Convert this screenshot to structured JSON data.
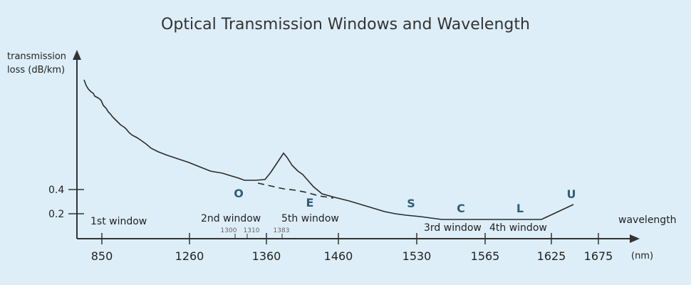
{
  "title": "Optical Transmission Windows and Wavelength",
  "y_axis": {
    "label_line1": "transmission",
    "label_line2": "loss (dB/km)",
    "ticks": [
      "0.4",
      "0.2"
    ]
  },
  "x_axis": {
    "label": "wavelength",
    "unit": "(nm)",
    "ticks": [
      "850",
      "1260",
      "1360",
      "1460",
      "1530",
      "1565",
      "1625",
      "1675"
    ],
    "minor_ticks": [
      "1300",
      "1310",
      "1383"
    ]
  },
  "windows": [
    "1st window",
    "2nd window",
    "5th window",
    "3rd window",
    "4th window"
  ],
  "bands": [
    "O",
    "E",
    "S",
    "C",
    "L",
    "U"
  ],
  "colors": {
    "background": "#ddeef8",
    "curve": "#2b2b2b",
    "band_text": "#2e5f7a"
  },
  "chart_data": {
    "type": "line",
    "series": [
      {
        "values": []
      }
    ]
  }
}
